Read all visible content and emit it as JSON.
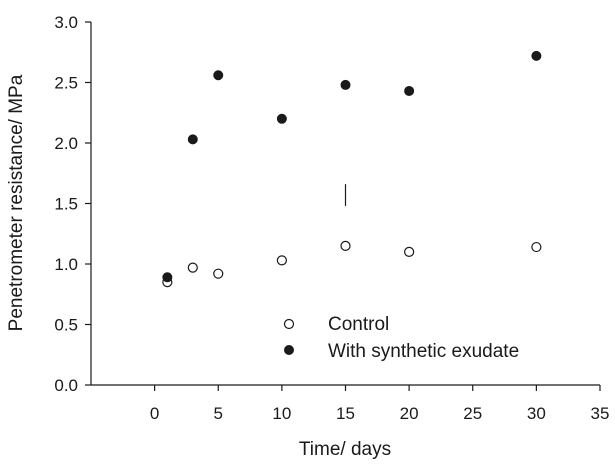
{
  "chart_data": {
    "type": "scatter",
    "title": "",
    "xlabel": "Time/ days",
    "ylabel": "Penetrometer resistance/ MPa",
    "xlim": [
      -5,
      35
    ],
    "ylim": [
      0,
      3
    ],
    "x_ticks": [
      0,
      5,
      10,
      15,
      20,
      25,
      30,
      35
    ],
    "x_tick_labels": [
      "0",
      "5",
      "10",
      "15",
      "20",
      "25",
      "30",
      "35"
    ],
    "y_ticks": [
      0,
      0.5,
      1.0,
      1.5,
      2.0,
      2.5,
      3.0
    ],
    "y_tick_labels": [
      "0.0",
      "0.5",
      "1.0",
      "1.5",
      "2.0",
      "2.5",
      "3.0"
    ],
    "grid": false,
    "legend_position": "lower-center",
    "series": [
      {
        "name": "Control",
        "marker": "open-circle",
        "color": "#1a1a1a",
        "x": [
          1,
          3,
          5,
          10,
          15,
          20,
          30
        ],
        "y": [
          0.85,
          0.97,
          0.92,
          1.03,
          1.15,
          1.1,
          1.14
        ]
      },
      {
        "name": "With synthetic exudate",
        "marker": "filled-circle",
        "color": "#1a1a1a",
        "x": [
          1,
          3,
          5,
          10,
          15,
          20,
          30
        ],
        "y": [
          0.89,
          2.03,
          2.56,
          2.2,
          2.48,
          2.43,
          2.72
        ]
      }
    ],
    "error_bar": {
      "x": 15,
      "y_low": 1.48,
      "y_high": 1.66
    }
  }
}
